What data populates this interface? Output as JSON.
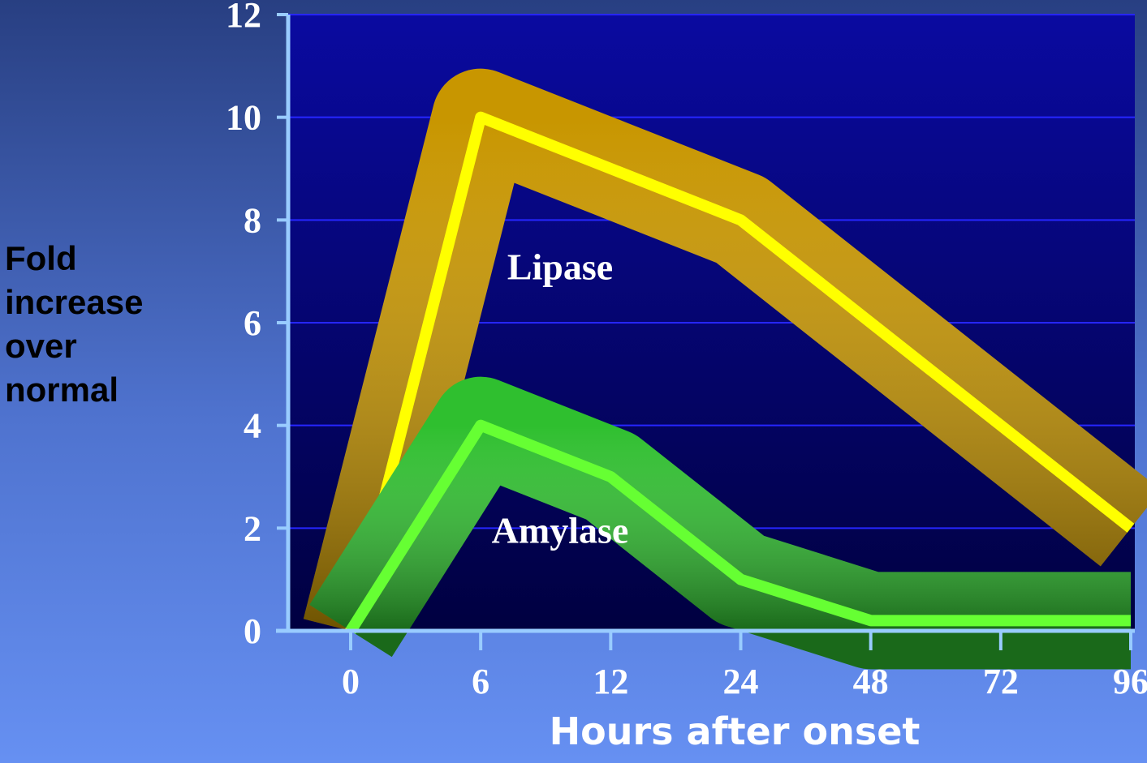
{
  "chart_data": {
    "type": "line",
    "xlabel": "Hours after onset",
    "ylabel": "Fold increase over normal",
    "categories": [
      "0",
      "6",
      "12",
      "24",
      "48",
      "72",
      "96"
    ],
    "series": [
      {
        "name": "Lipase",
        "color": "#ffff00",
        "band_color": "#c89600",
        "values": [
          0,
          10,
          9,
          8,
          6,
          4,
          2
        ]
      },
      {
        "name": "Amylase",
        "color": "#66ff33",
        "band_color": "#2fbf2f",
        "values": [
          0,
          4,
          3,
          1,
          0.2,
          0.2,
          0.2
        ]
      }
    ],
    "ylim": [
      0,
      12
    ],
    "yticks": [
      0,
      2,
      4,
      6,
      8,
      10,
      12
    ],
    "grid": true
  }
}
